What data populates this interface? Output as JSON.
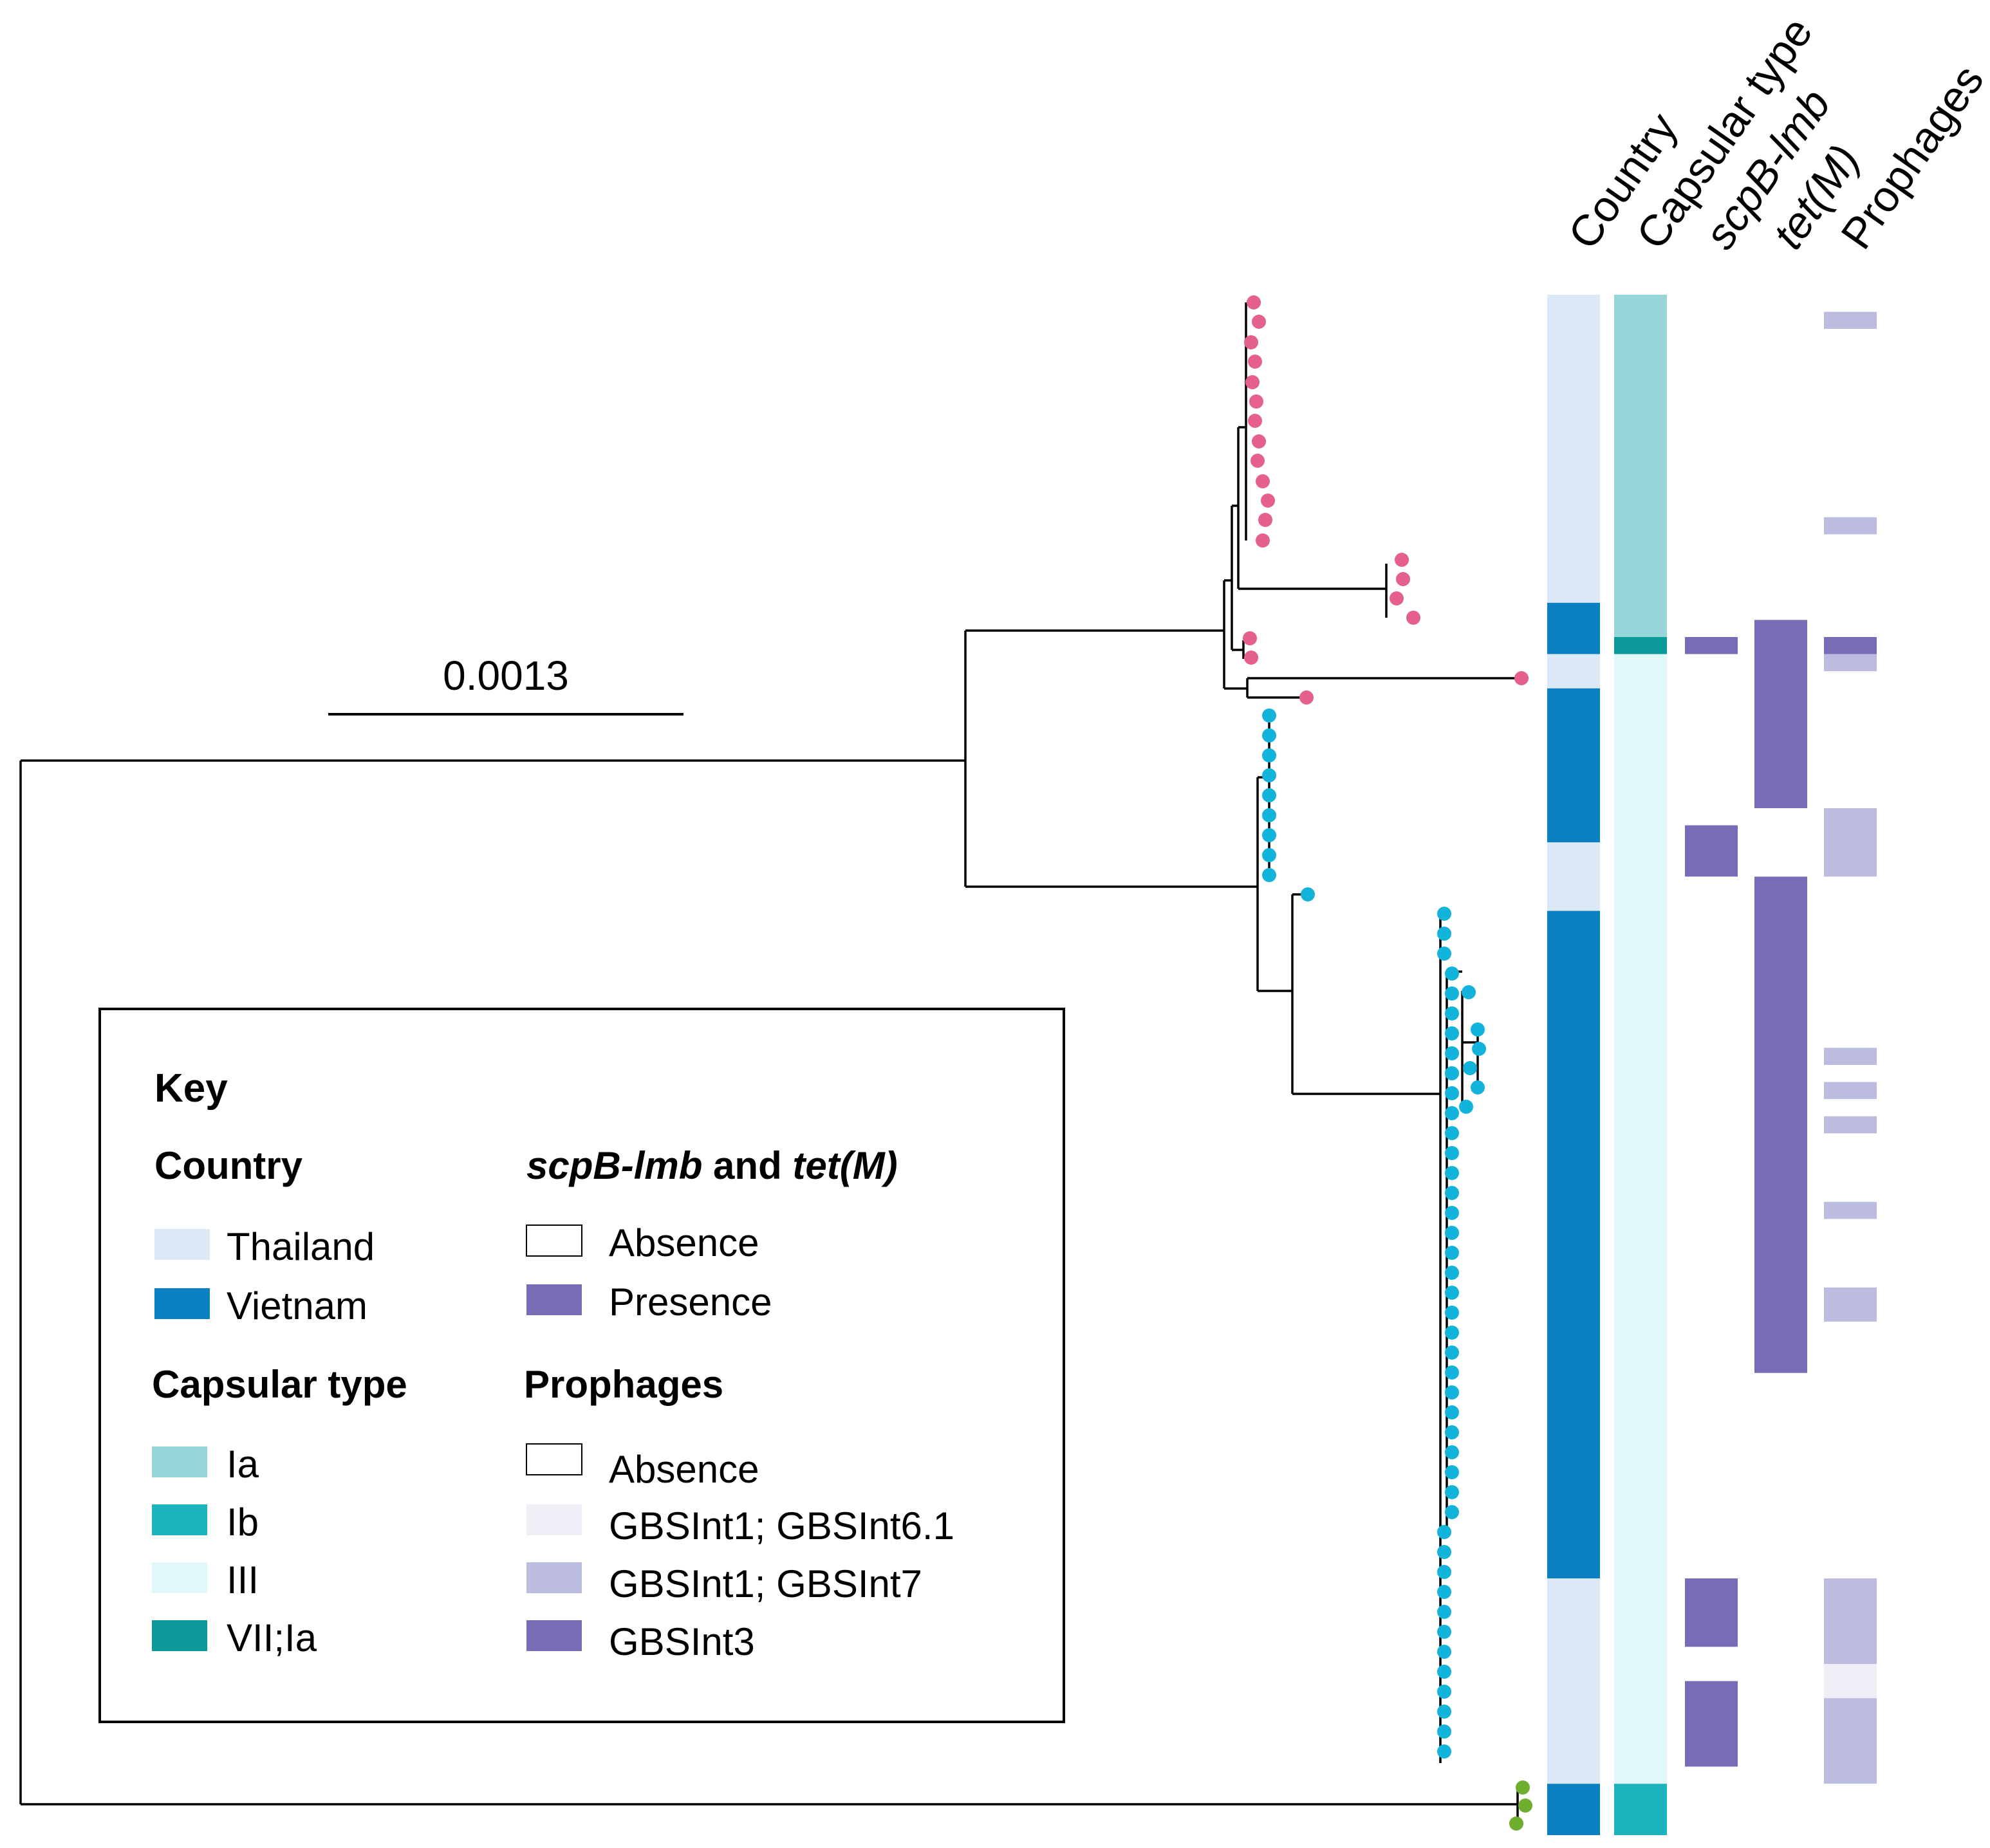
{
  "scale_bar": {
    "label": "0.0013"
  },
  "columns": [
    {
      "key": "country",
      "label": "Country",
      "italic": false
    },
    {
      "key": "capsular",
      "label": "Capsular type",
      "italic": false
    },
    {
      "key": "scpb",
      "label": "scpB-lmb",
      "italic": true
    },
    {
      "key": "tetm",
      "label": "tet(M)",
      "italic": true
    },
    {
      "key": "prophages",
      "label": "Prophages",
      "italic": false
    }
  ],
  "colors": {
    "Thailand": "#dbe9f6",
    "Vietnam": "#0a7fc2",
    "Ia": "#96d6d8",
    "Ib": "#1bb3bc",
    "III": "#e0f8fa",
    "VII;Ia": "#0c9a9a",
    "Absence": "#ffffff",
    "Presence": "#786cb7",
    "GBSInt1; GBSInt6.1": "#efeef7",
    "GBSInt1; GBSInt7": "#bcbce0",
    "GBSInt3": "#786cb7",
    "clade_Ia": "#e5608f",
    "clade_III": "#13b4dc",
    "clade_Ib": "#6fae2e",
    "tree": "#000000"
  },
  "tracks": {
    "country": [
      {
        "from": 0,
        "to": 18,
        "value": "Thailand"
      },
      {
        "from": 18,
        "to": 21,
        "value": "Vietnam"
      },
      {
        "from": 21,
        "to": 23,
        "value": "Thailand"
      },
      {
        "from": 23,
        "to": 32,
        "value": "Vietnam"
      },
      {
        "from": 32,
        "to": 36,
        "value": "Thailand"
      },
      {
        "from": 36,
        "to": 75,
        "value": "Vietnam"
      },
      {
        "from": 75,
        "to": 87,
        "value": "Thailand"
      },
      {
        "from": 87,
        "to": 90,
        "value": "Vietnam"
      }
    ],
    "capsular": [
      {
        "from": 0,
        "to": 20,
        "value": "Ia"
      },
      {
        "from": 20,
        "to": 21,
        "value": "VII;Ia"
      },
      {
        "from": 21,
        "to": 87,
        "value": "III"
      },
      {
        "from": 87,
        "to": 90,
        "value": "Ib"
      }
    ],
    "scpb": [
      {
        "from": 0,
        "to": 20,
        "value": "Absence"
      },
      {
        "from": 20,
        "to": 21,
        "value": "Presence"
      },
      {
        "from": 21,
        "to": 31,
        "value": "Absence"
      },
      {
        "from": 31,
        "to": 34,
        "value": "Presence"
      },
      {
        "from": 34,
        "to": 75,
        "value": "Absence"
      },
      {
        "from": 75,
        "to": 79,
        "value": "Presence"
      },
      {
        "from": 79,
        "to": 81,
        "value": "Absence"
      },
      {
        "from": 81,
        "to": 86,
        "value": "Presence"
      },
      {
        "from": 86,
        "to": 90,
        "value": "Absence"
      }
    ],
    "tetm": [
      {
        "from": 0,
        "to": 19,
        "value": "Absence"
      },
      {
        "from": 19,
        "to": 30,
        "value": "Presence"
      },
      {
        "from": 30,
        "to": 34,
        "value": "Absence"
      },
      {
        "from": 34,
        "to": 63,
        "value": "Presence"
      },
      {
        "from": 63,
        "to": 90,
        "value": "Absence"
      }
    ],
    "prophages": [
      {
        "from": 0,
        "to": 1,
        "value": "Absence"
      },
      {
        "from": 1,
        "to": 2,
        "value": "GBSInt1; GBSInt7"
      },
      {
        "from": 2,
        "to": 13,
        "value": "Absence"
      },
      {
        "from": 13,
        "to": 14,
        "value": "GBSInt1; GBSInt7"
      },
      {
        "from": 14,
        "to": 20,
        "value": "Absence"
      },
      {
        "from": 20,
        "to": 21,
        "value": "GBSInt3"
      },
      {
        "from": 21,
        "to": 22,
        "value": "GBSInt1; GBSInt7"
      },
      {
        "from": 22,
        "to": 30,
        "value": "Absence"
      },
      {
        "from": 30,
        "to": 34,
        "value": "GBSInt1; GBSInt7"
      },
      {
        "from": 34,
        "to": 44,
        "value": "Absence"
      },
      {
        "from": 44,
        "to": 45,
        "value": "GBSInt1; GBSInt7"
      },
      {
        "from": 45,
        "to": 46,
        "value": "Absence"
      },
      {
        "from": 46,
        "to": 47,
        "value": "GBSInt1; GBSInt7"
      },
      {
        "from": 47,
        "to": 48,
        "value": "Absence"
      },
      {
        "from": 48,
        "to": 49,
        "value": "GBSInt1; GBSInt7"
      },
      {
        "from": 49,
        "to": 53,
        "value": "Absence"
      },
      {
        "from": 53,
        "to": 54,
        "value": "GBSInt1; GBSInt7"
      },
      {
        "from": 54,
        "to": 58,
        "value": "Absence"
      },
      {
        "from": 58,
        "to": 60,
        "value": "GBSInt1; GBSInt7"
      },
      {
        "from": 60,
        "to": 75,
        "value": "Absence"
      },
      {
        "from": 75,
        "to": 80,
        "value": "GBSInt1; GBSInt7"
      },
      {
        "from": 80,
        "to": 82,
        "value": "GBSInt1; GBSInt6.1"
      },
      {
        "from": 82,
        "to": 87,
        "value": "GBSInt1; GBSInt7"
      },
      {
        "from": 87,
        "to": 90,
        "value": "Absence"
      }
    ]
  },
  "legend": {
    "title": "Key",
    "country": {
      "title": "Country",
      "items": [
        "Thailand",
        "Vietnam"
      ]
    },
    "capsular": {
      "title": "Capsular type",
      "items": [
        "Ia",
        "Ib",
        "III",
        "VII;Ia"
      ]
    },
    "genes": {
      "title_italic_a": "scpB-lmb",
      "title_mid": " and ",
      "title_italic_b": "tet(M)",
      "items": [
        "Absence",
        "Presence"
      ]
    },
    "prophages": {
      "title": "Prophages",
      "items": [
        "Absence",
        "GBSInt1; GBSInt6.1",
        "GBSInt1; GBSInt7",
        "GBSInt3"
      ]
    }
  }
}
